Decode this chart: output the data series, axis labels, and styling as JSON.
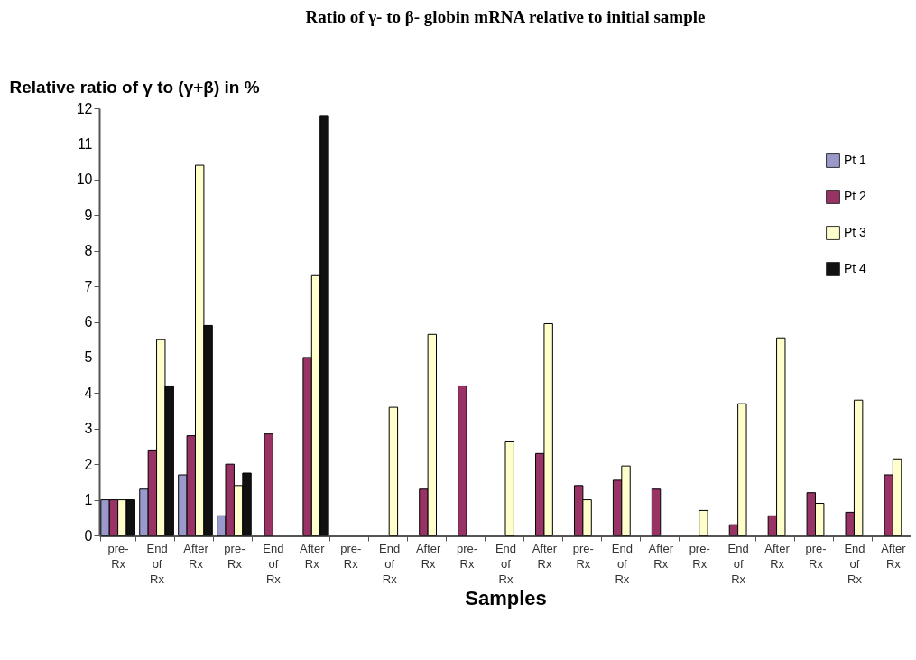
{
  "chart_data": {
    "type": "bar",
    "title": "Ratio of γ- to β- globin mRNA relative to initial sample",
    "xlabel": "Samples",
    "ylabel": "Relative ratio of γ to (γ+β) in %",
    "categories": [
      "pre- Rx",
      "End of Rx",
      "After Rx",
      "pre- Rx",
      "End of Rx",
      "After Rx",
      "pre- Rx",
      "End of Rx",
      "After Rx",
      "pre- Rx",
      "End of Rx",
      "After Rx",
      "pre- Rx",
      "End of Rx",
      "After Rx",
      "pre- Rx",
      "End of Rx",
      "After Rx",
      "pre- Rx",
      "End of Rx",
      "After Rx"
    ],
    "series": [
      {
        "name": "Pt 1",
        "color": "#9999cc",
        "values": [
          1,
          1.3,
          1.7,
          0.55,
          null,
          null,
          null,
          null,
          null,
          null,
          null,
          null,
          null,
          null,
          null,
          null,
          null,
          null,
          null,
          null,
          null
        ]
      },
      {
        "name": "Pt 2",
        "color": "#993366",
        "values": [
          1,
          2.4,
          2.8,
          2.0,
          2.85,
          5.0,
          null,
          null,
          1.3,
          4.2,
          null,
          2.3,
          1.4,
          1.55,
          1.3,
          null,
          0.3,
          0.55,
          1.2,
          0.65,
          1.7
        ]
      },
      {
        "name": "Pt 3",
        "color": "#ffffcc",
        "values": [
          1,
          5.5,
          10.4,
          1.4,
          null,
          7.3,
          null,
          3.6,
          5.65,
          null,
          2.65,
          5.95,
          1.0,
          1.95,
          null,
          0.7,
          3.7,
          5.55,
          0.9,
          3.8,
          2.15
        ]
      },
      {
        "name": "Pt 4",
        "color": "#111111",
        "values": [
          1,
          4.2,
          5.9,
          1.75,
          null,
          11.8,
          null,
          null,
          null,
          null,
          null,
          null,
          null,
          null,
          null,
          null,
          null,
          null,
          null,
          null,
          null
        ]
      }
    ],
    "ylim": [
      0,
      12
    ],
    "yticks": [
      0,
      1,
      2,
      3,
      4,
      5,
      6,
      7,
      8,
      9,
      10,
      11,
      12
    ],
    "grid": false,
    "legend": "top right"
  }
}
